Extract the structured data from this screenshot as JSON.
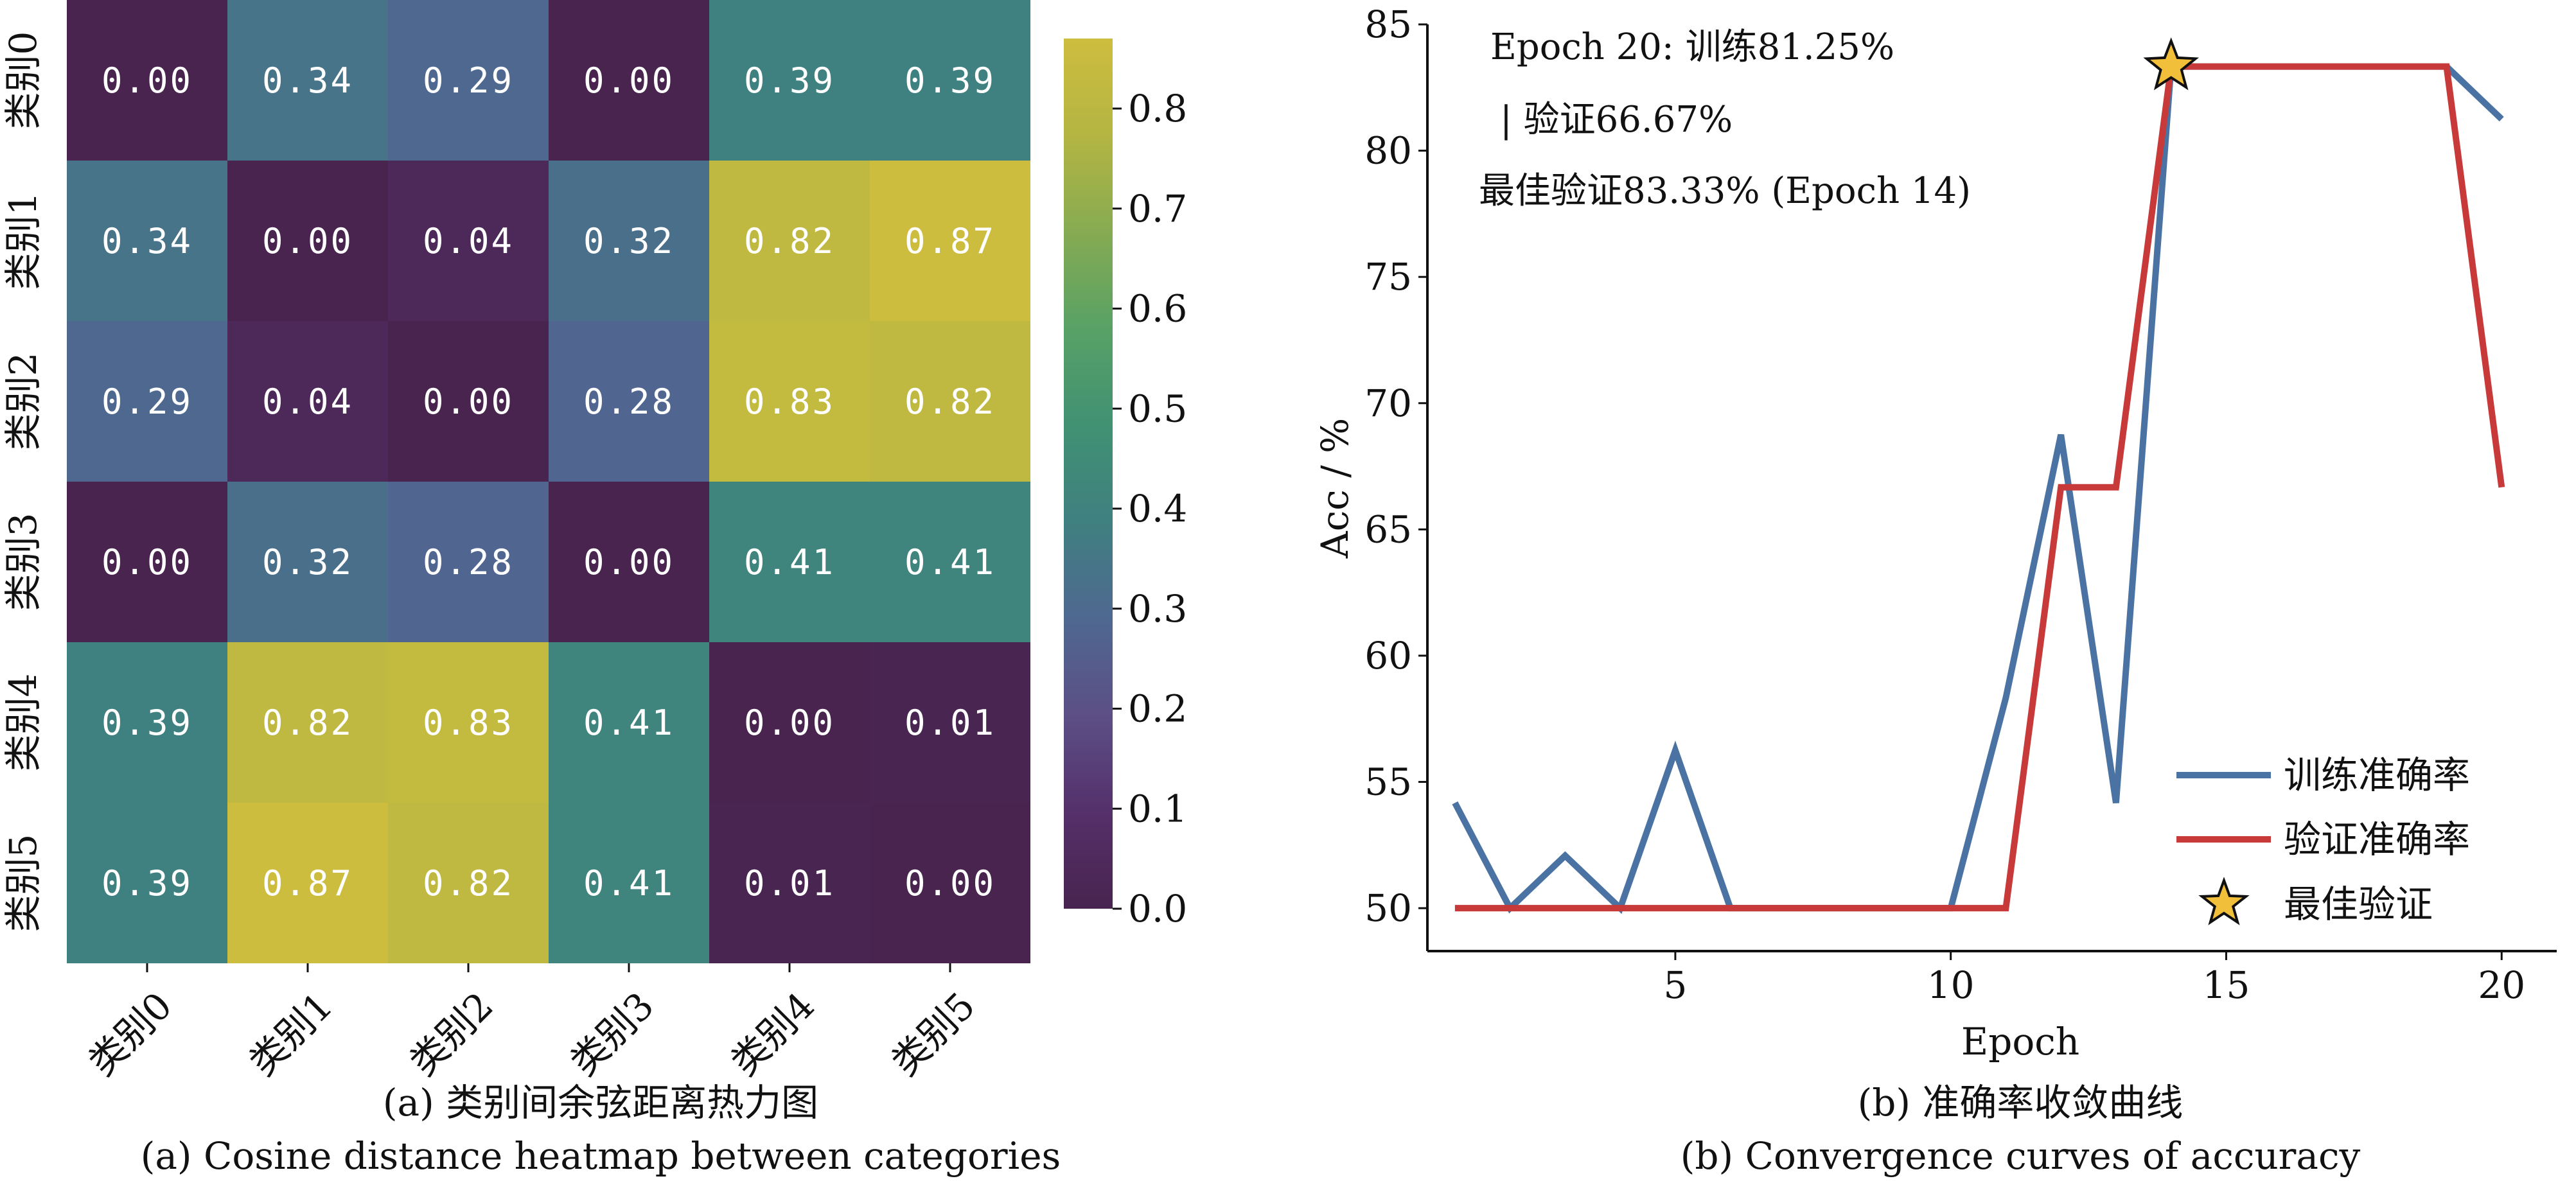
{
  "chart_data": [
    {
      "type": "heatmap",
      "title": "(a) 类别间余弦距离热力图",
      "subtitle": "(a) Cosine distance heatmap between categories",
      "row_labels": [
        "类别0",
        "类别1",
        "类别2",
        "类别3",
        "类别4",
        "类别5"
      ],
      "col_labels": [
        "类别0",
        "类别1",
        "类别2",
        "类别3",
        "类别4",
        "类别5"
      ],
      "values": [
        [
          0.0,
          0.34,
          0.29,
          0.0,
          0.39,
          0.39
        ],
        [
          0.34,
          0.0,
          0.04,
          0.32,
          0.82,
          0.87
        ],
        [
          0.29,
          0.04,
          0.0,
          0.28,
          0.83,
          0.82
        ],
        [
          0.0,
          0.32,
          0.28,
          0.0,
          0.41,
          0.41
        ],
        [
          0.39,
          0.82,
          0.83,
          0.41,
          0.0,
          0.01
        ],
        [
          0.39,
          0.87,
          0.82,
          0.41,
          0.01,
          0.0
        ]
      ],
      "colorbar": {
        "range": [
          0.0,
          0.87
        ],
        "ticks": [
          "0.0",
          "0.1",
          "0.2",
          "0.3",
          "0.4",
          "0.5",
          "0.6",
          "0.7",
          "0.8"
        ],
        "colors": [
          "#48244f",
          "#55306a",
          "#5c4f86",
          "#4f6890",
          "#3f8080",
          "#419173",
          "#58a166",
          "#86ab52",
          "#b4b542",
          "#cdbd3f"
        ]
      }
    },
    {
      "type": "line",
      "title": "(b) 准确率收敛曲线",
      "subtitle": "(b) Convergence curves of accuracy",
      "xlabel": "Epoch",
      "ylabel": "Acc / %",
      "xlim": [
        0.5,
        21.0
      ],
      "ylim": [
        48.3,
        85.0
      ],
      "xticks": [
        "5",
        "10",
        "15",
        "20"
      ],
      "yticks": [
        "50",
        "55",
        "60",
        "65",
        "70",
        "75",
        "80",
        "85"
      ],
      "x": [
        1,
        2,
        3,
        4,
        5,
        6,
        7,
        8,
        9,
        10,
        11,
        12,
        13,
        14,
        15,
        16,
        17,
        18,
        19,
        20
      ],
      "series": [
        {
          "name": "训练准确率",
          "color": "#4a72a2",
          "values": [
            54.17,
            50.0,
            52.08,
            50.0,
            56.25,
            50.0,
            50.0,
            50.0,
            50.0,
            50.0,
            58.33,
            68.75,
            54.17,
            83.33,
            83.33,
            83.33,
            83.33,
            83.33,
            83.33,
            81.25
          ]
        },
        {
          "name": "验证准确率",
          "color": "#c8393a",
          "values": [
            50.0,
            50.0,
            50.0,
            50.0,
            50.0,
            50.0,
            50.0,
            50.0,
            50.0,
            50.0,
            50.0,
            66.67,
            66.67,
            83.33,
            83.33,
            83.33,
            83.33,
            83.33,
            83.33,
            66.67
          ]
        }
      ],
      "best_point": {
        "name": "最佳验证",
        "x": 14,
        "y": 83.33,
        "color": "#f2bf3a"
      },
      "annotation": {
        "line1": "Epoch 20: 训练81.25%",
        "line2": "| 验证66.67%",
        "line3": "最佳验证83.33% (Epoch 14)"
      },
      "legend_position": "lower-right"
    }
  ]
}
